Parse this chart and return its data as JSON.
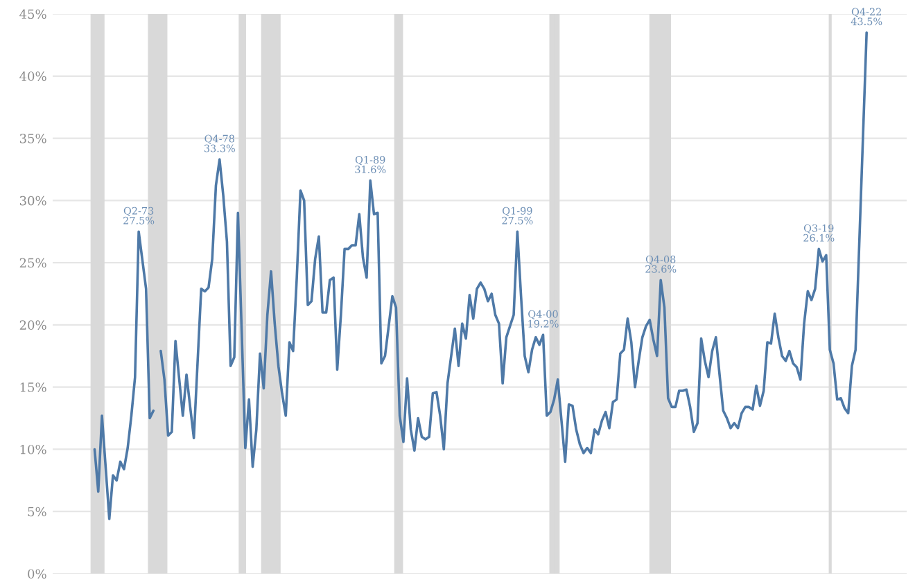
{
  "chart_data": {
    "type": "line",
    "categories": [
      null,
      null,
      null,
      null,
      null,
      null,
      null,
      null,
      null,
      null,
      null,
      null,
      null,
      null,
      null,
      null,
      null,
      null,
      null,
      null,
      null,
      null,
      null,
      null,
      null,
      null,
      null,
      null,
      null,
      null,
      null,
      null,
      null,
      null,
      null,
      null,
      null,
      null,
      null,
      null,
      null,
      null,
      null,
      null,
      null,
      null,
      null,
      null,
      null,
      null,
      null,
      null,
      null,
      null,
      null,
      null,
      null,
      null,
      null,
      null,
      null,
      null,
      null,
      null,
      null,
      null,
      null,
      null,
      null,
      null,
      null,
      null,
      null,
      null,
      null,
      null,
      null,
      null,
      null,
      null,
      null,
      null,
      null,
      null,
      null,
      null,
      null,
      null,
      null,
      null,
      null,
      null,
      null,
      null,
      null,
      null,
      null,
      null,
      null,
      null,
      null,
      null,
      null,
      null,
      null,
      null,
      null,
      null,
      null,
      null,
      null,
      null,
      null,
      null,
      null,
      null,
      null,
      null,
      null,
      null,
      null,
      null,
      null,
      null,
      null,
      null,
      null,
      null,
      null,
      null,
      null,
      null,
      null,
      null,
      null,
      null,
      null,
      null,
      null,
      null,
      null,
      null,
      null,
      null,
      null,
      null,
      null,
      null,
      null,
      null,
      null,
      null,
      null,
      null,
      null,
      null,
      null,
      null,
      null,
      null,
      null,
      null,
      null,
      null,
      null,
      null,
      null,
      null,
      null,
      null,
      null,
      null,
      null,
      null,
      null,
      null,
      null,
      null,
      null,
      null,
      null,
      null,
      null,
      null,
      null,
      null,
      null,
      null,
      null,
      null,
      null,
      null,
      null,
      null,
      null,
      null,
      null,
      null,
      null,
      null,
      null,
      null,
      null,
      null,
      null,
      null,
      null,
      null,
      null,
      null,
      null
    ],
    "series": [
      {
        "color": "#4e79a7",
        "values": [
          10.0,
          6.6,
          12.7,
          8.6,
          4.4,
          7.9,
          7.5,
          9.0,
          8.4,
          10.1,
          12.7,
          15.8,
          27.5,
          25.2,
          22.9,
          12.5,
          13.1,
          null,
          null,
          null,
          null,
          null,
          null,
          null,
          null,
          null,
          null,
          null,
          null,
          null,
          null,
          null,
          null,
          null,
          null,
          null,
          null,
          null,
          null,
          null,
          null,
          null,
          null,
          null,
          null,
          null,
          null,
          null,
          null,
          null,
          null,
          null,
          null,
          null,
          null,
          null,
          null,
          null,
          null,
          null,
          null,
          null,
          null,
          null,
          null,
          null,
          null,
          null,
          null,
          null,
          null,
          null,
          null,
          null,
          null,
          null,
          null,
          null,
          null,
          null,
          null,
          null,
          null,
          null,
          null,
          null,
          null,
          null,
          null,
          null,
          null,
          null,
          null,
          null,
          null,
          null,
          null,
          null,
          null,
          null,
          null,
          null,
          null,
          null,
          null,
          null,
          null,
          null,
          null,
          null,
          null,
          null,
          null,
          null,
          null,
          null,
          null,
          null,
          null,
          null,
          null,
          null,
          null,
          null,
          null,
          null,
          null,
          null,
          null,
          null,
          null,
          null,
          null,
          null,
          null,
          null,
          null,
          null,
          null,
          null,
          null,
          null,
          null,
          null,
          null,
          null,
          null,
          null,
          null,
          null,
          null,
          null,
          null,
          null,
          null,
          null,
          null,
          null,
          null,
          null,
          null,
          null,
          null,
          null,
          null,
          null,
          null,
          null,
          null,
          null,
          null,
          null,
          null,
          null,
          null,
          null,
          null,
          null,
          null,
          null,
          null,
          null,
          null,
          null,
          null,
          null,
          null,
          null,
          null,
          null,
          null,
          null,
          null,
          null,
          null,
          null,
          null,
          null,
          null,
          null,
          null,
          null,
          null,
          null,
          null,
          null,
          null,
          null,
          null,
          null,
          null
        ],
        "value_labels": [
          null,
          null,
          null,
          null,
          null,
          null,
          null,
          null,
          null,
          null,
          null,
          null,
          "Q2-73\n27.5%",
          null,
          null,
          null,
          null,
          null,
          null,
          null,
          null,
          null,
          null,
          null,
          null,
          null,
          null,
          null,
          null,
          null,
          null,
          null,
          null,
          null,
          null,
          null,
          null,
          null,
          null,
          null,
          null,
          null,
          null,
          null,
          null,
          null,
          null,
          null,
          null,
          null,
          null,
          null,
          null,
          null,
          null,
          null,
          null,
          null,
          null,
          null,
          null,
          null,
          null,
          null,
          null,
          null,
          null,
          null,
          null,
          null,
          null,
          null,
          null,
          null,
          null,
          null,
          null,
          null,
          null,
          null,
          null,
          null,
          null,
          null,
          null,
          null,
          null,
          null,
          null,
          null,
          null,
          null,
          null,
          null,
          null,
          null,
          null,
          null,
          null,
          null,
          null,
          null,
          null,
          null,
          null,
          null,
          null,
          null,
          null,
          null,
          null,
          null,
          null,
          null,
          null,
          null,
          null,
          null,
          null,
          null,
          null,
          null,
          null,
          null,
          null,
          null,
          null,
          null,
          null,
          null,
          null,
          null,
          null,
          null,
          null,
          null,
          null,
          null,
          null,
          null,
          null,
          null,
          null,
          null,
          null,
          null,
          null,
          null,
          null,
          null,
          null,
          null,
          null,
          null,
          null,
          null,
          null,
          null,
          null,
          null,
          null,
          null,
          null,
          null,
          null,
          null,
          null,
          null,
          null,
          null,
          null,
          null,
          null,
          null,
          null,
          null,
          null,
          null,
          null,
          null,
          null,
          null,
          null,
          null,
          null,
          null,
          null,
          null,
          null,
          null,
          null,
          null,
          null,
          null,
          null,
          null,
          null,
          null,
          null,
          null,
          null,
          null,
          null,
          null,
          null,
          null,
          null,
          null,
          null,
          null,
          null
        ]
      },
      {
        "color": "#4e79a7",
        "values": [
          null,
          null,
          null,
          null,
          null,
          null,
          null,
          null,
          null,
          null,
          null,
          null,
          null,
          null,
          null,
          null,
          null,
          null,
          17.9,
          15.6,
          11.1,
          11.4,
          18.7,
          15.7,
          12.7,
          16.0,
          13.4,
          10.9,
          16.9,
          22.9,
          22.7,
          23.0,
          25.3,
          31.2,
          33.3,
          30.4,
          26.7,
          16.7,
          17.4,
          29.0,
          19.6,
          10.1,
          14.0,
          8.6,
          11.6,
          17.7,
          14.9,
          20.8,
          24.3,
          20.1,
          16.7,
          14.5,
          12.7,
          18.6,
          17.9,
          23.8,
          30.8,
          30.0,
          21.6,
          21.9,
          25.3,
          27.1,
          21.0,
          21.0,
          23.6,
          23.8,
          16.4,
          20.8,
          26.1,
          26.1,
          26.4,
          26.4,
          28.9,
          25.4,
          23.8,
          31.6,
          28.9,
          29.0,
          16.9,
          17.5,
          19.9,
          22.3,
          21.4,
          12.7,
          10.6,
          15.7,
          11.6,
          9.9,
          12.5,
          11.0,
          10.8,
          11.0,
          14.5,
          14.6,
          12.7,
          10.0,
          15.3,
          17.5,
          19.7,
          16.7,
          20.1,
          18.9,
          22.4,
          20.5,
          22.9,
          23.4,
          22.9,
          21.9,
          22.5,
          20.8,
          20.1,
          15.3,
          19.0,
          19.9,
          20.8,
          27.5,
          22.3,
          17.5,
          16.2,
          18.0,
          19.0,
          18.4,
          19.2,
          12.7,
          13.0,
          14.0,
          15.6,
          12.3,
          9.0,
          13.6,
          13.5,
          11.6,
          10.4,
          9.7,
          10.1,
          9.7,
          11.6,
          11.2,
          12.3,
          13.0,
          11.7,
          13.8,
          14.0,
          17.7,
          18.0,
          20.5,
          18.6,
          15.0,
          17.1,
          19.0,
          19.9,
          20.4,
          18.8,
          17.5,
          23.6,
          21.4,
          14.1,
          13.4,
          13.4,
          14.7,
          14.7,
          14.8,
          13.4,
          11.4,
          12.1,
          18.9,
          17.1,
          15.8,
          17.9,
          19.0,
          16.0,
          13.1,
          12.5,
          11.7,
          12.1,
          11.7,
          12.9,
          13.4,
          13.4,
          13.2,
          15.1,
          13.5,
          14.7,
          18.6,
          18.5,
          20.9,
          19.0,
          17.5,
          17.1,
          17.9,
          16.9,
          16.6,
          15.6,
          20.1,
          22.7,
          22.0,
          22.9,
          26.1,
          25.1,
          25.6,
          18.0,
          16.9,
          14.0,
          14.1,
          13.3,
          12.9,
          16.7,
          18.0,
          26.5,
          35.0,
          43.5
        ],
        "value_labels": [
          null,
          null,
          null,
          null,
          null,
          null,
          null,
          null,
          null,
          null,
          null,
          null,
          null,
          null,
          null,
          null,
          null,
          null,
          null,
          null,
          null,
          null,
          null,
          null,
          null,
          null,
          null,
          null,
          null,
          null,
          null,
          null,
          null,
          null,
          "Q4-78\n33.3%",
          null,
          null,
          null,
          null,
          null,
          null,
          null,
          null,
          null,
          null,
          null,
          null,
          null,
          null,
          null,
          null,
          null,
          null,
          null,
          null,
          null,
          null,
          null,
          null,
          null,
          null,
          null,
          null,
          null,
          null,
          null,
          null,
          null,
          null,
          null,
          null,
          null,
          null,
          null,
          null,
          "Q1-89\n31.6%",
          null,
          null,
          null,
          null,
          null,
          null,
          null,
          null,
          null,
          null,
          null,
          null,
          null,
          null,
          null,
          null,
          null,
          null,
          null,
          null,
          null,
          null,
          null,
          null,
          null,
          null,
          null,
          null,
          null,
          null,
          null,
          null,
          null,
          null,
          null,
          null,
          null,
          null,
          null,
          "Q1-99\n27.5%",
          null,
          null,
          null,
          null,
          null,
          null,
          "Q4-00\n19.2%",
          null,
          null,
          null,
          null,
          null,
          null,
          null,
          null,
          null,
          null,
          null,
          null,
          null,
          null,
          null,
          null,
          null,
          null,
          null,
          null,
          null,
          null,
          null,
          null,
          null,
          null,
          null,
          null,
          null,
          null,
          null,
          "Q4-08\n23.6%",
          null,
          null,
          null,
          null,
          null,
          null,
          null,
          null,
          null,
          null,
          null,
          null,
          null,
          null,
          null,
          null,
          null,
          null,
          null,
          null,
          null,
          null,
          null,
          null,
          null,
          null,
          null,
          null,
          null,
          null,
          null,
          null,
          null,
          null,
          null,
          null,
          null,
          null,
          null,
          null,
          null,
          null,
          "Q3-19\n26.1%",
          null,
          null,
          null,
          null,
          null,
          null,
          null,
          null,
          null,
          null,
          null,
          null,
          "Q4-22\n43.5%"
        ]
      }
    ],
    "ylim": [
      0,
      45
    ],
    "yticks": [
      {
        "value": 0,
        "label": "0%"
      },
      {
        "value": 5,
        "label": "5%"
      },
      {
        "value": 10,
        "label": "10%"
      },
      {
        "value": 15,
        "label": "15%"
      },
      {
        "value": 20,
        "label": "20%"
      },
      {
        "value": 25,
        "label": "25%"
      },
      {
        "value": 30,
        "label": "30%"
      },
      {
        "value": 35,
        "label": "35%"
      },
      {
        "value": 40,
        "label": "40%"
      },
      {
        "value": 45,
        "label": "45%"
      }
    ],
    "tick_labels": "y",
    "grid": "y"
  }
}
